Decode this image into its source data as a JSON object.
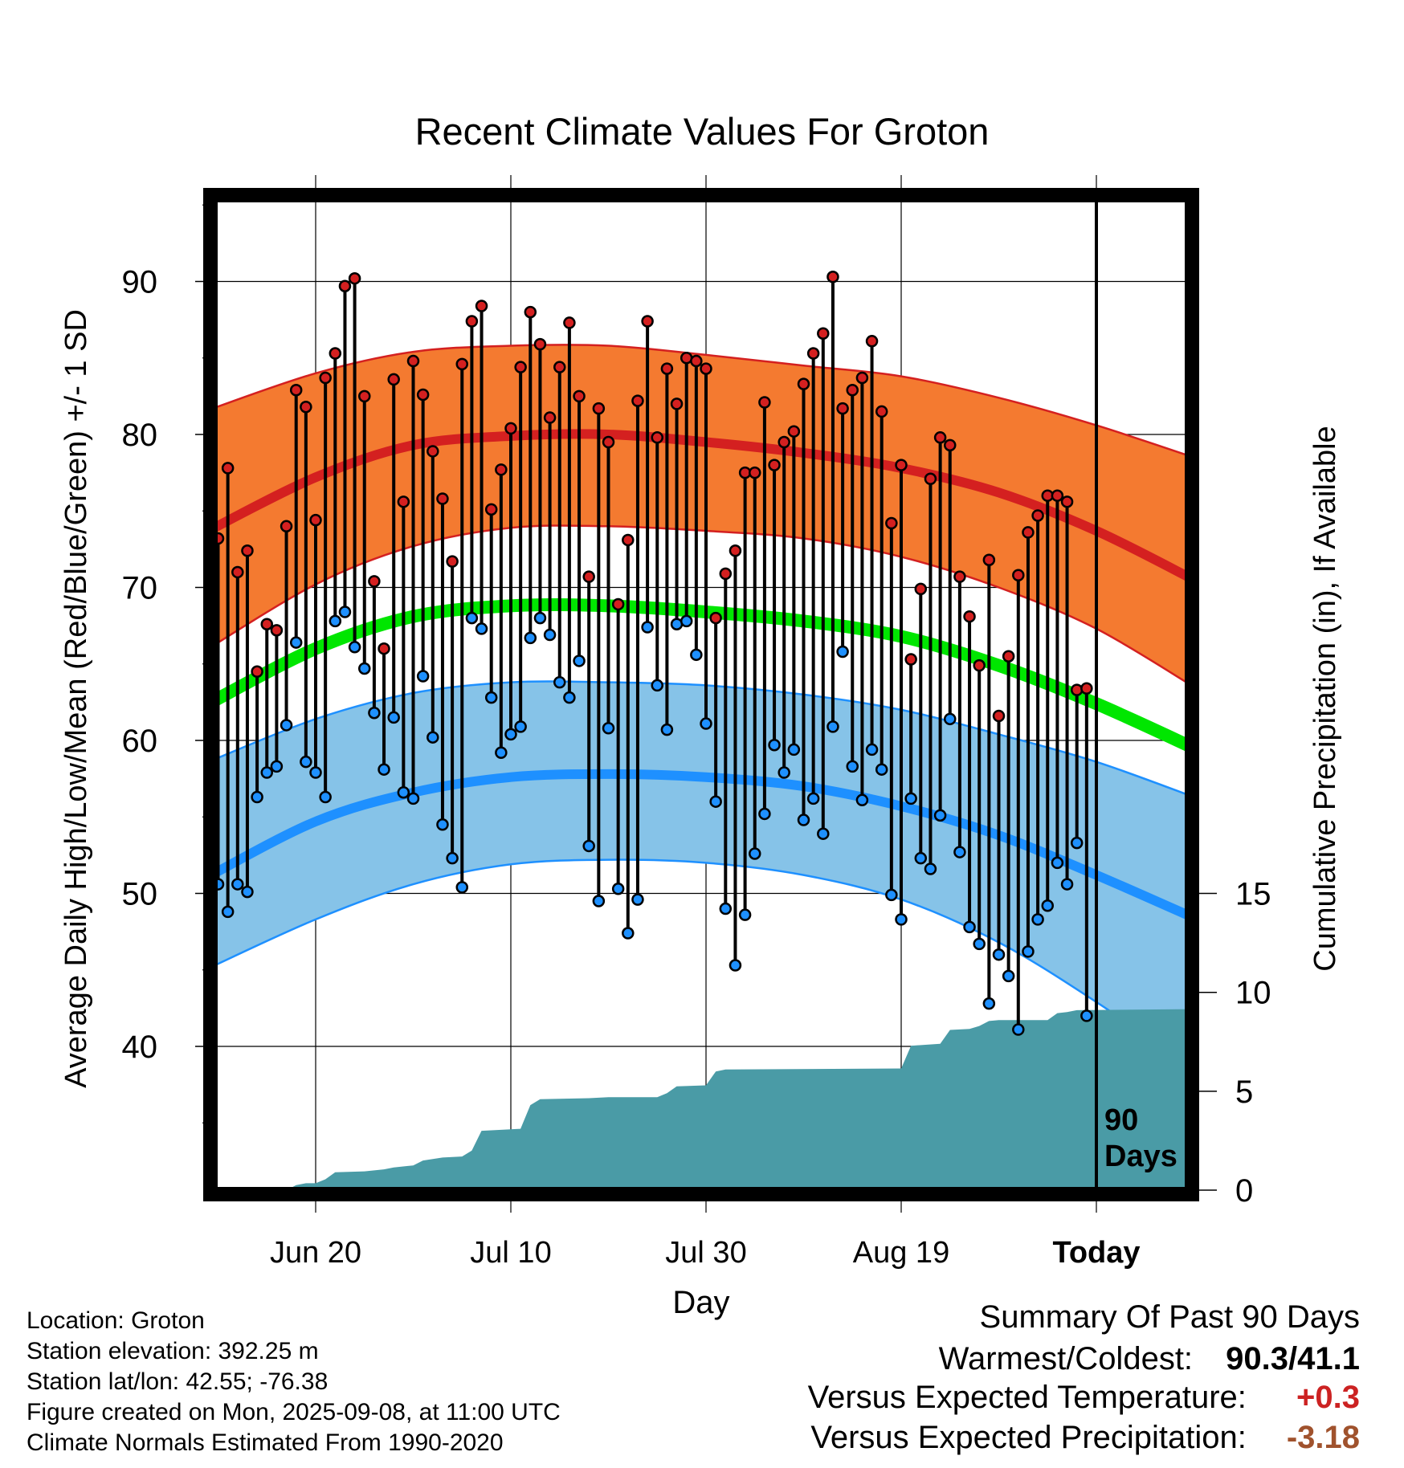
{
  "chart_data": {
    "type": "line",
    "title": "Recent Climate Values For Groton",
    "xlabel": "Day",
    "ylabel_left": "Average Daily High/Low/Mean (Red/Blue/Green) +/- 1 SD",
    "ylabel_right": "Cumulative Precipitation (in), If Available",
    "x_tick_labels": [
      "Jun 20",
      "Jul 10",
      "Jul 30",
      "Aug 19",
      "Today"
    ],
    "x_tick_days": [
      10,
      30,
      50,
      70,
      90
    ],
    "ylim_left": [
      31,
      96
    ],
    "yticks_left": [
      "40",
      "50",
      "60",
      "70",
      "80",
      "90"
    ],
    "ylim_right": [
      0,
      20
    ],
    "yticks_right": [
      "0",
      "5",
      "10",
      "15"
    ],
    "grid": true,
    "today_marker": {
      "day": 90,
      "label_line1": "90",
      "label_line2": "Days"
    },
    "normals": {
      "high_mean": [
        {
          "day": -1,
          "value": 73.7
        },
        {
          "day": 10,
          "value": 77.2
        },
        {
          "day": 20,
          "value": 79.3
        },
        {
          "day": 30,
          "value": 79.9
        },
        {
          "day": 40,
          "value": 80.0
        },
        {
          "day": 50,
          "value": 79.5
        },
        {
          "day": 60,
          "value": 78.8
        },
        {
          "day": 70,
          "value": 77.8
        },
        {
          "day": 80,
          "value": 76.2
        },
        {
          "day": 90,
          "value": 73.7
        },
        {
          "day": 100,
          "value": 70.5
        }
      ],
      "high_plus_sd": [
        {
          "day": -1,
          "value": 81.6
        },
        {
          "day": 10,
          "value": 84.0
        },
        {
          "day": 20,
          "value": 85.4
        },
        {
          "day": 30,
          "value": 85.8
        },
        {
          "day": 40,
          "value": 85.8
        },
        {
          "day": 50,
          "value": 85.2
        },
        {
          "day": 60,
          "value": 84.5
        },
        {
          "day": 70,
          "value": 83.8
        },
        {
          "day": 80,
          "value": 82.4
        },
        {
          "day": 90,
          "value": 80.6
        },
        {
          "day": 100,
          "value": 78.5
        }
      ],
      "high_minus_sd": [
        {
          "day": -1,
          "value": 66.0
        },
        {
          "day": 10,
          "value": 70.2
        },
        {
          "day": 20,
          "value": 72.7
        },
        {
          "day": 30,
          "value": 73.9
        },
        {
          "day": 40,
          "value": 74.0
        },
        {
          "day": 50,
          "value": 73.7
        },
        {
          "day": 60,
          "value": 73.2
        },
        {
          "day": 70,
          "value": 72.0
        },
        {
          "day": 80,
          "value": 70.0
        },
        {
          "day": 90,
          "value": 67.3
        },
        {
          "day": 100,
          "value": 63.5
        }
      ],
      "mean": [
        {
          "day": -1,
          "value": 62.4
        },
        {
          "day": 10,
          "value": 66.0
        },
        {
          "day": 20,
          "value": 68.1
        },
        {
          "day": 30,
          "value": 68.8
        },
        {
          "day": 40,
          "value": 68.8
        },
        {
          "day": 50,
          "value": 68.4
        },
        {
          "day": 60,
          "value": 67.8
        },
        {
          "day": 70,
          "value": 66.8
        },
        {
          "day": 80,
          "value": 64.9
        },
        {
          "day": 90,
          "value": 62.4
        },
        {
          "day": 100,
          "value": 59.5
        }
      ],
      "low_mean": [
        {
          "day": -1,
          "value": 51.1
        },
        {
          "day": 10,
          "value": 54.7
        },
        {
          "day": 20,
          "value": 56.6
        },
        {
          "day": 30,
          "value": 57.6
        },
        {
          "day": 40,
          "value": 57.8
        },
        {
          "day": 50,
          "value": 57.6
        },
        {
          "day": 60,
          "value": 57.0
        },
        {
          "day": 70,
          "value": 55.7
        },
        {
          "day": 80,
          "value": 53.8
        },
        {
          "day": 90,
          "value": 51.2
        },
        {
          "day": 100,
          "value": 48.4
        }
      ],
      "low_plus_sd": [
        {
          "day": -1,
          "value": 58.6
        },
        {
          "day": 10,
          "value": 61.4
        },
        {
          "day": 20,
          "value": 63.1
        },
        {
          "day": 30,
          "value": 63.8
        },
        {
          "day": 40,
          "value": 63.8
        },
        {
          "day": 50,
          "value": 63.6
        },
        {
          "day": 60,
          "value": 63.0
        },
        {
          "day": 70,
          "value": 62.0
        },
        {
          "day": 80,
          "value": 60.4
        },
        {
          "day": 90,
          "value": 58.6
        },
        {
          "day": 100,
          "value": 56.3
        }
      ],
      "low_minus_sd": [
        {
          "day": -1,
          "value": 45.1
        },
        {
          "day": 10,
          "value": 48.3
        },
        {
          "day": 20,
          "value": 50.6
        },
        {
          "day": 30,
          "value": 51.9
        },
        {
          "day": 40,
          "value": 52.2
        },
        {
          "day": 50,
          "value": 52.0
        },
        {
          "day": 60,
          "value": 51.2
        },
        {
          "day": 70,
          "value": 49.6
        },
        {
          "day": 80,
          "value": 46.8
        },
        {
          "day": 90,
          "value": 42.9
        },
        {
          "day": 100,
          "value": 38.5
        }
      ]
    },
    "daily": [
      {
        "day": 0,
        "high": 73.2,
        "low": 50.6
      },
      {
        "day": 1,
        "high": 77.8,
        "low": 48.8
      },
      {
        "day": 2,
        "high": 71.0,
        "low": 50.6
      },
      {
        "day": 3,
        "high": 72.4,
        "low": 50.1
      },
      {
        "day": 4,
        "high": 64.5,
        "low": 56.3
      },
      {
        "day": 5,
        "high": 67.6,
        "low": 57.9
      },
      {
        "day": 6,
        "high": 67.2,
        "low": 58.3
      },
      {
        "day": 7,
        "high": 74.0,
        "low": 61.0
      },
      {
        "day": 8,
        "high": 82.9,
        "low": 66.4
      },
      {
        "day": 9,
        "high": 81.8,
        "low": 58.6
      },
      {
        "day": 10,
        "high": 74.4,
        "low": 57.9
      },
      {
        "day": 11,
        "high": 83.7,
        "low": 56.3
      },
      {
        "day": 12,
        "high": 85.3,
        "low": 67.8
      },
      {
        "day": 13,
        "high": 89.7,
        "low": 68.4
      },
      {
        "day": 14,
        "high": 90.2,
        "low": 66.1
      },
      {
        "day": 15,
        "high": 82.5,
        "low": 64.7
      },
      {
        "day": 16,
        "high": 70.4,
        "low": 61.8
      },
      {
        "day": 17,
        "high": 66.0,
        "low": 58.1
      },
      {
        "day": 18,
        "high": 83.6,
        "low": 61.5
      },
      {
        "day": 19,
        "high": 75.6,
        "low": 56.6
      },
      {
        "day": 20,
        "high": 84.8,
        "low": 56.2
      },
      {
        "day": 21,
        "high": 82.6,
        "low": 64.2
      },
      {
        "day": 22,
        "high": 78.9,
        "low": 60.2
      },
      {
        "day": 23,
        "high": 75.8,
        "low": 54.5
      },
      {
        "day": 24,
        "high": 71.7,
        "low": 52.3
      },
      {
        "day": 25,
        "high": 84.6,
        "low": 50.4
      },
      {
        "day": 26,
        "high": 87.4,
        "low": 68.0
      },
      {
        "day": 27,
        "high": 88.4,
        "low": 67.3
      },
      {
        "day": 28,
        "high": 75.1,
        "low": 62.8
      },
      {
        "day": 29,
        "high": 77.7,
        "low": 59.2
      },
      {
        "day": 30,
        "high": 80.4,
        "low": 60.4
      },
      {
        "day": 31,
        "high": 84.4,
        "low": 60.9
      },
      {
        "day": 32,
        "high": 88.0,
        "low": 66.7
      },
      {
        "day": 33,
        "high": 85.9,
        "low": 68.0
      },
      {
        "day": 34,
        "high": 81.1,
        "low": 66.9
      },
      {
        "day": 35,
        "high": 84.4,
        "low": 63.8
      },
      {
        "day": 36,
        "high": 87.3,
        "low": 62.8
      },
      {
        "day": 37,
        "high": 82.5,
        "low": 65.2
      },
      {
        "day": 38,
        "high": 70.7,
        "low": 53.1
      },
      {
        "day": 39,
        "high": 81.7,
        "low": 49.5
      },
      {
        "day": 40,
        "high": 79.5,
        "low": 60.8
      },
      {
        "day": 41,
        "high": 68.9,
        "low": 50.3
      },
      {
        "day": 42,
        "high": 73.1,
        "low": 47.4
      },
      {
        "day": 43,
        "high": 82.2,
        "low": 49.6
      },
      {
        "day": 44,
        "high": 87.4,
        "low": 67.4
      },
      {
        "day": 45,
        "high": 79.8,
        "low": 63.6
      },
      {
        "day": 46,
        "high": 84.3,
        "low": 60.7
      },
      {
        "day": 47,
        "high": 82.0,
        "low": 67.6
      },
      {
        "day": 48,
        "high": 85.0,
        "low": 67.8
      },
      {
        "day": 49,
        "high": 84.8,
        "low": 65.6
      },
      {
        "day": 50,
        "high": 84.3,
        "low": 61.1
      },
      {
        "day": 51,
        "high": 68.0,
        "low": 56.0
      },
      {
        "day": 52,
        "high": 70.9,
        "low": 49.0
      },
      {
        "day": 53,
        "high": 72.4,
        "low": 45.3
      },
      {
        "day": 54,
        "high": 77.5,
        "low": 48.6
      },
      {
        "day": 55,
        "high": 77.5,
        "low": 52.6
      },
      {
        "day": 56,
        "high": 82.1,
        "low": 55.2
      },
      {
        "day": 57,
        "high": 78.0,
        "low": 59.7
      },
      {
        "day": 58,
        "high": 79.5,
        "low": 57.9
      },
      {
        "day": 59,
        "high": 80.2,
        "low": 59.4
      },
      {
        "day": 60,
        "high": 83.3,
        "low": 54.8
      },
      {
        "day": 61,
        "high": 85.3,
        "low": 56.2
      },
      {
        "day": 62,
        "high": 86.6,
        "low": 53.9
      },
      {
        "day": 63,
        "high": 90.3,
        "low": 60.9
      },
      {
        "day": 64,
        "high": 81.7,
        "low": 65.8
      },
      {
        "day": 65,
        "high": 82.9,
        "low": 58.3
      },
      {
        "day": 66,
        "high": 83.7,
        "low": 56.1
      },
      {
        "day": 67,
        "high": 86.1,
        "low": 59.4
      },
      {
        "day": 68,
        "high": 81.5,
        "low": 58.1
      },
      {
        "day": 69,
        "high": 74.2,
        "low": 49.9
      },
      {
        "day": 70,
        "high": 78.0,
        "low": 48.3
      },
      {
        "day": 71,
        "high": 65.3,
        "low": 56.2
      },
      {
        "day": 72,
        "high": 69.9,
        "low": 52.3
      },
      {
        "day": 73,
        "high": 77.1,
        "low": 51.6
      },
      {
        "day": 74,
        "high": 79.8,
        "low": 55.1
      },
      {
        "day": 75,
        "high": 79.3,
        "low": 61.4
      },
      {
        "day": 76,
        "high": 70.7,
        "low": 52.7
      },
      {
        "day": 77,
        "high": 68.1,
        "low": 47.8
      },
      {
        "day": 78,
        "high": 64.9,
        "low": 46.7
      },
      {
        "day": 79,
        "high": 71.8,
        "low": 42.8
      },
      {
        "day": 80,
        "high": 61.6,
        "low": 46.0
      },
      {
        "day": 81,
        "high": 65.5,
        "low": 44.6
      },
      {
        "day": 82,
        "high": 70.8,
        "low": 41.1
      },
      {
        "day": 83,
        "high": 73.6,
        "low": 46.2
      },
      {
        "day": 84,
        "high": 74.7,
        "low": 48.3
      },
      {
        "day": 85,
        "high": 76.0,
        "low": 49.2
      },
      {
        "day": 86,
        "high": 76.0,
        "low": 52.0
      },
      {
        "day": 87,
        "high": 75.6,
        "low": 50.6
      },
      {
        "day": 88,
        "high": 63.3,
        "low": 53.3
      },
      {
        "day": 89,
        "high": 63.4,
        "low": 42.0
      }
    ],
    "precip_cumulative": [
      {
        "day": -1,
        "value": 0
      },
      {
        "day": 7,
        "value": 0
      },
      {
        "day": 8,
        "value": 0.25
      },
      {
        "day": 9,
        "value": 0.35
      },
      {
        "day": 10,
        "value": 0.35
      },
      {
        "day": 11,
        "value": 0.55
      },
      {
        "day": 12,
        "value": 0.9
      },
      {
        "day": 15,
        "value": 0.95
      },
      {
        "day": 17,
        "value": 1.05
      },
      {
        "day": 18,
        "value": 1.15
      },
      {
        "day": 20,
        "value": 1.25
      },
      {
        "day": 21,
        "value": 1.5
      },
      {
        "day": 23,
        "value": 1.65
      },
      {
        "day": 25,
        "value": 1.7
      },
      {
        "day": 26,
        "value": 2.0
      },
      {
        "day": 27,
        "value": 3.0
      },
      {
        "day": 31,
        "value": 3.1
      },
      {
        "day": 32,
        "value": 4.3
      },
      {
        "day": 33,
        "value": 4.6
      },
      {
        "day": 38,
        "value": 4.65
      },
      {
        "day": 40,
        "value": 4.7
      },
      {
        "day": 45,
        "value": 4.7
      },
      {
        "day": 46,
        "value": 4.9
      },
      {
        "day": 47,
        "value": 5.25
      },
      {
        "day": 50,
        "value": 5.3
      },
      {
        "day": 51,
        "value": 6.0
      },
      {
        "day": 52,
        "value": 6.1
      },
      {
        "day": 70,
        "value": 6.15
      },
      {
        "day": 71,
        "value": 7.3
      },
      {
        "day": 74,
        "value": 7.4
      },
      {
        "day": 75,
        "value": 8.1
      },
      {
        "day": 77,
        "value": 8.15
      },
      {
        "day": 78,
        "value": 8.3
      },
      {
        "day": 79,
        "value": 8.55
      },
      {
        "day": 80,
        "value": 8.6
      },
      {
        "day": 85,
        "value": 8.6
      },
      {
        "day": 86,
        "value": 8.95
      },
      {
        "day": 87,
        "value": 9.0
      },
      {
        "day": 88,
        "value": 9.1
      },
      {
        "day": 100,
        "value": 9.15
      }
    ]
  },
  "station_info": [
    "Location: Groton",
    "Station elevation: 392.25 m",
    "Station lat/lon: 42.55; -76.38",
    "Figure created on Mon, 2025-09-08, at 11:00 UTC",
    "Climate Normals Estimated From 1990-2020"
  ],
  "summary": {
    "heading": "Summary Of Past 90 Days",
    "warmest_coldest_label": "Warmest/Coldest:",
    "warmest_coldest_value": "90.3/41.1",
    "temp_label": "Versus Expected Temperature:",
    "temp_value": "+0.3",
    "precip_label": "Versus Expected Precipitation:",
    "precip_value": "-3.18",
    "colors": {
      "temp_value": "#cc2222",
      "precip_value": "#a0522d"
    }
  },
  "colors": {
    "high_band": "#f47a30",
    "high_line": "#d42020",
    "mean_line": "#00e600",
    "low_band": "#86c3e8",
    "low_line": "#1e90ff",
    "precip_fill": "#4a9ba6"
  }
}
